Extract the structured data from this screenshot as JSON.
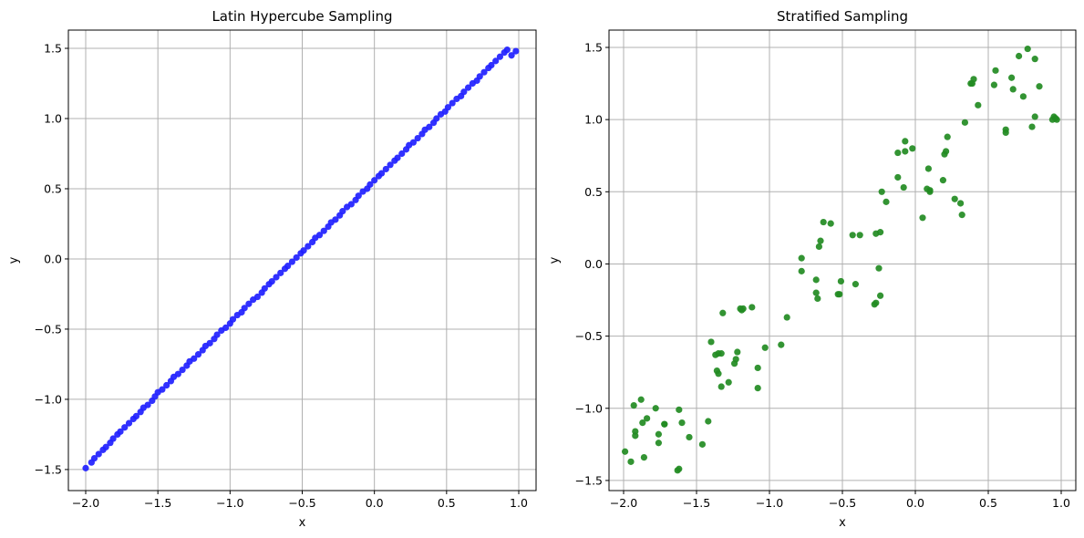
{
  "chart_data": [
    {
      "type": "scatter",
      "title": "Latin Hypercube Sampling",
      "xlabel": "x",
      "ylabel": "y",
      "xlim": [
        -2.12,
        1.12
      ],
      "ylim": [
        -1.65,
        1.63
      ],
      "xticks": [
        -2.0,
        -1.5,
        -1.0,
        -0.5,
        0.0,
        0.5,
        1.0
      ],
      "yticks": [
        -1.5,
        -1.0,
        -0.5,
        0.0,
        0.5,
        1.0,
        1.5
      ],
      "xtick_labels": [
        "−2.0",
        "−1.5",
        "−1.0",
        "−0.5",
        "0.0",
        "0.5",
        "1.0"
      ],
      "ytick_labels": [
        "−1.5",
        "−1.0",
        "−0.5",
        "0.0",
        "0.5",
        "1.0",
        "1.5"
      ],
      "grid": true,
      "color": "#1f1fff",
      "series": [
        {
          "x": [
            -2.0,
            -1.96,
            -1.94,
            -1.91,
            -1.88,
            -1.86,
            -1.83,
            -1.81,
            -1.78,
            -1.76,
            -1.73,
            -1.7,
            -1.67,
            -1.65,
            -1.62,
            -1.6,
            -1.57,
            -1.54,
            -1.52,
            -1.5,
            -1.47,
            -1.44,
            -1.41,
            -1.39,
            -1.36,
            -1.33,
            -1.3,
            -1.28,
            -1.25,
            -1.22,
            -1.19,
            -1.17,
            -1.14,
            -1.11,
            -1.09,
            -1.06,
            -1.03,
            -1.0,
            -0.98,
            -0.95,
            -0.92,
            -0.9,
            -0.87,
            -0.84,
            -0.81,
            -0.78,
            -0.76,
            -0.73,
            -0.71,
            -0.68,
            -0.65,
            -0.62,
            -0.6,
            -0.57,
            -0.54,
            -0.51,
            -0.49,
            -0.46,
            -0.43,
            -0.41,
            -0.38,
            -0.35,
            -0.32,
            -0.3,
            -0.27,
            -0.24,
            -0.22,
            -0.19,
            -0.16,
            -0.13,
            -0.11,
            -0.08,
            -0.05,
            -0.03,
            0.0,
            0.03,
            0.05,
            0.08,
            0.11,
            0.14,
            0.16,
            0.19,
            0.22,
            0.24,
            0.27,
            0.3,
            0.33,
            0.35,
            0.38,
            0.41,
            0.43,
            0.46,
            0.49,
            0.51,
            0.54,
            0.57,
            0.6,
            0.62,
            0.65,
            0.68,
            0.71,
            0.73,
            0.76,
            0.79,
            0.81,
            0.84,
            0.87,
            0.9,
            0.92,
            0.95,
            0.98
          ],
          "y": [
            -1.49,
            -1.45,
            -1.42,
            -1.39,
            -1.36,
            -1.34,
            -1.31,
            -1.28,
            -1.25,
            -1.23,
            -1.2,
            -1.17,
            -1.14,
            -1.12,
            -1.09,
            -1.06,
            -1.04,
            -1.01,
            -0.98,
            -0.95,
            -0.93,
            -0.9,
            -0.87,
            -0.84,
            -0.82,
            -0.79,
            -0.76,
            -0.73,
            -0.71,
            -0.68,
            -0.65,
            -0.62,
            -0.6,
            -0.57,
            -0.54,
            -0.51,
            -0.49,
            -0.46,
            -0.43,
            -0.4,
            -0.38,
            -0.35,
            -0.32,
            -0.29,
            -0.27,
            -0.24,
            -0.21,
            -0.18,
            -0.16,
            -0.13,
            -0.1,
            -0.07,
            -0.05,
            -0.02,
            0.01,
            0.04,
            0.06,
            0.09,
            0.12,
            0.15,
            0.17,
            0.2,
            0.23,
            0.26,
            0.28,
            0.31,
            0.34,
            0.37,
            0.39,
            0.42,
            0.45,
            0.48,
            0.5,
            0.53,
            0.56,
            0.59,
            0.61,
            0.64,
            0.67,
            0.7,
            0.72,
            0.75,
            0.78,
            0.81,
            0.83,
            0.86,
            0.89,
            0.92,
            0.94,
            0.97,
            1.0,
            1.03,
            1.05,
            1.08,
            1.11,
            1.14,
            1.16,
            1.19,
            1.22,
            1.25,
            1.27,
            1.3,
            1.33,
            1.36,
            1.38,
            1.41,
            1.44,
            1.47,
            1.49,
            1.45,
            1.48
          ]
        }
      ]
    },
    {
      "type": "scatter",
      "title": "Stratified Sampling",
      "xlabel": "x",
      "ylabel": "y",
      "xlim": [
        -2.1,
        1.1
      ],
      "ylim": [
        -1.57,
        1.62
      ],
      "xticks": [
        -2.0,
        -1.5,
        -1.0,
        -0.5,
        0.0,
        0.5,
        1.0
      ],
      "yticks": [
        -1.5,
        -1.0,
        -0.5,
        0.0,
        0.5,
        1.0,
        1.5
      ],
      "xtick_labels": [
        "−2.0",
        "−1.5",
        "−1.0",
        "−0.5",
        "0.0",
        "0.5",
        "1.0"
      ],
      "ytick_labels": [
        "−1.5",
        "−1.0",
        "−0.5",
        "0.0",
        "0.5",
        "1.0",
        "1.5"
      ],
      "grid": true,
      "color": "#228b22",
      "series": [
        {
          "x": [
            -1.99,
            -1.95,
            -1.93,
            -1.92,
            -1.92,
            -1.88,
            -1.87,
            -1.86,
            -1.84,
            -1.78,
            -1.76,
            -1.76,
            -1.72,
            -1.72,
            -1.63,
            -1.62,
            -1.62,
            -1.6,
            -1.55,
            -1.46,
            -1.42,
            -1.4,
            -1.37,
            -1.36,
            -1.35,
            -1.35,
            -1.33,
            -1.33,
            -1.32,
            -1.28,
            -1.24,
            -1.23,
            -1.22,
            -1.2,
            -1.19,
            -1.18,
            -1.12,
            -1.08,
            -1.08,
            -1.03,
            -0.92,
            -0.88,
            -0.78,
            -0.78,
            -0.68,
            -0.68,
            -0.67,
            -0.66,
            -0.65,
            -0.63,
            -0.58,
            -0.53,
            -0.52,
            -0.51,
            -0.43,
            -0.41,
            -0.38,
            -0.28,
            -0.27,
            -0.27,
            -0.25,
            -0.24,
            -0.24,
            -0.23,
            -0.2,
            -0.12,
            -0.12,
            -0.08,
            -0.07,
            -0.07,
            -0.02,
            0.05,
            0.08,
            0.09,
            0.1,
            0.1,
            0.19,
            0.2,
            0.21,
            0.22,
            0.27,
            0.31,
            0.32,
            0.34,
            0.38,
            0.39,
            0.4,
            0.43,
            0.54,
            0.55,
            0.62,
            0.62,
            0.66,
            0.67,
            0.71,
            0.74,
            0.77,
            0.8,
            0.82,
            0.82,
            0.85,
            0.94,
            0.95,
            0.96,
            0.97
          ],
          "y": [
            -1.3,
            -1.37,
            -0.98,
            -1.19,
            -1.16,
            -0.94,
            -1.1,
            -1.34,
            -1.07,
            -1.0,
            -1.24,
            -1.18,
            -1.11,
            -1.11,
            -1.43,
            -1.42,
            -1.01,
            -1.1,
            -1.2,
            -1.25,
            -1.09,
            -0.54,
            -0.63,
            -0.74,
            -0.76,
            -0.62,
            -0.62,
            -0.85,
            -0.34,
            -0.82,
            -0.69,
            -0.66,
            -0.61,
            -0.31,
            -0.32,
            -0.31,
            -0.3,
            -0.72,
            -0.86,
            -0.58,
            -0.56,
            -0.37,
            0.04,
            -0.05,
            -0.11,
            -0.2,
            -0.24,
            0.12,
            0.16,
            0.29,
            0.28,
            -0.21,
            -0.21,
            -0.12,
            0.2,
            -0.14,
            0.2,
            -0.28,
            -0.27,
            0.21,
            -0.03,
            -0.22,
            0.22,
            0.5,
            0.43,
            0.6,
            0.77,
            0.53,
            0.85,
            0.78,
            0.8,
            0.32,
            0.52,
            0.66,
            0.5,
            0.51,
            0.58,
            0.76,
            0.78,
            0.88,
            0.45,
            0.42,
            0.34,
            0.98,
            1.25,
            1.25,
            1.28,
            1.1,
            1.24,
            1.34,
            0.93,
            0.91,
            1.29,
            1.21,
            1.44,
            1.16,
            1.49,
            0.95,
            1.42,
            1.02,
            1.23,
            1.0,
            1.02,
            1.01,
            1.0
          ]
        }
      ]
    }
  ]
}
